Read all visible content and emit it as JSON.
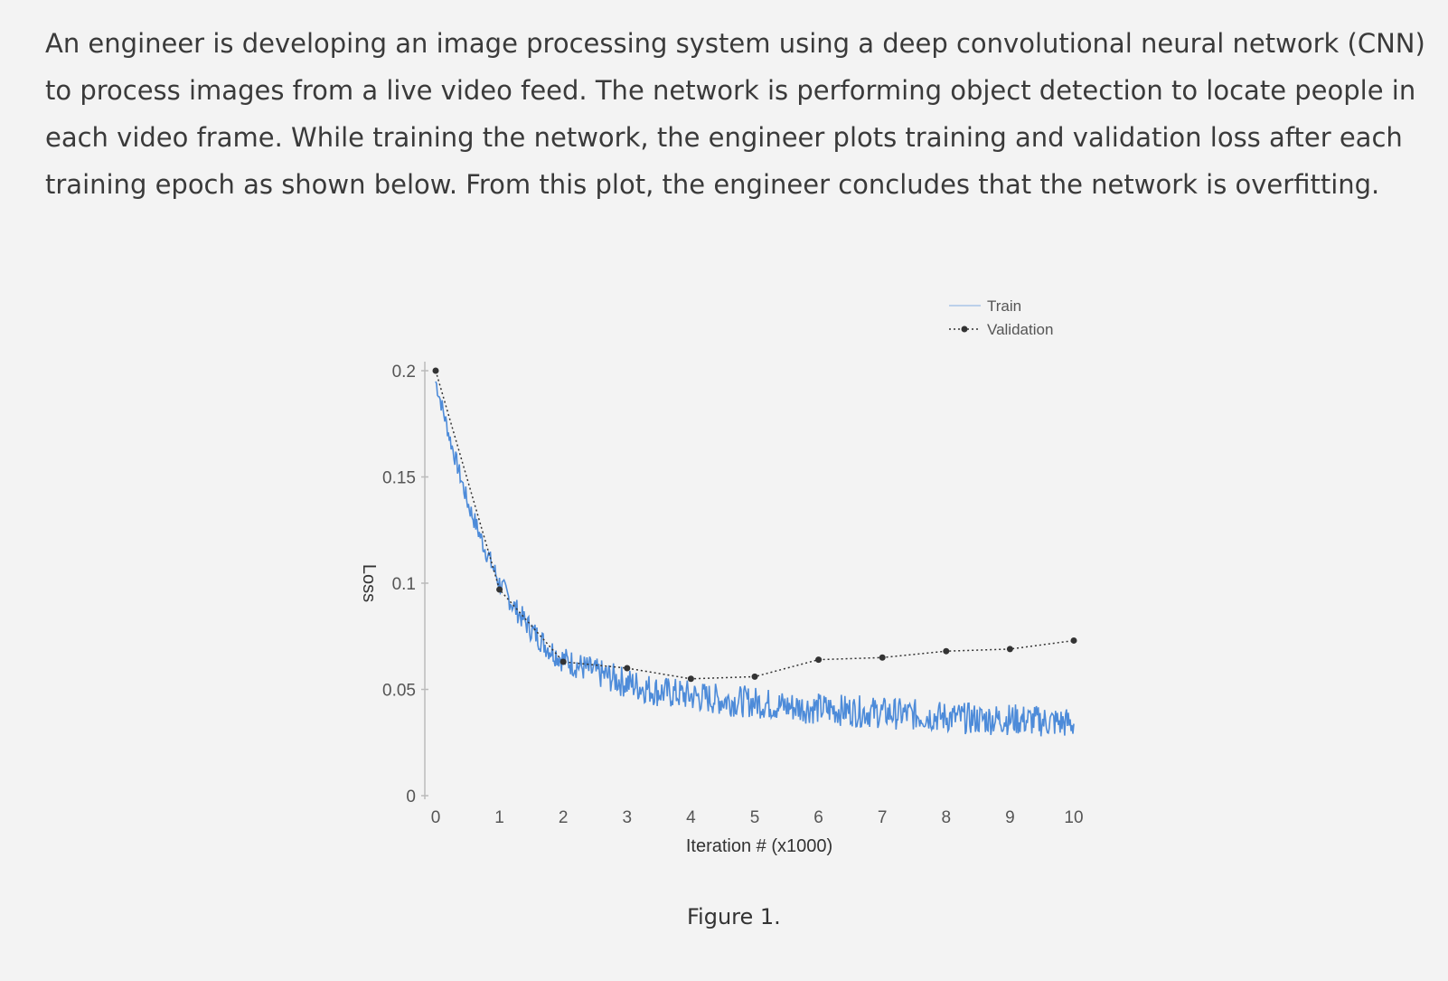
{
  "question": {
    "text": "An engineer is developing an image processing system using a deep convolutional neural network (CNN) to process images from a live video feed. The network is performing object detection to locate people in each video frame. While training the network, the engineer plots training and validation loss after each training epoch as shown below. From this plot, the engineer concludes that the network is overfitting."
  },
  "figure": {
    "caption": "Figure 1."
  },
  "colors": {
    "train": "#3b7fd6",
    "validation": "#333333",
    "axis": "#bbbbbb"
  },
  "chart_data": {
    "type": "line",
    "title": "",
    "xlabel": "Iteration # (x1000)",
    "ylabel": "Loss",
    "xlim": [
      0,
      10
    ],
    "ylim": [
      0,
      0.2
    ],
    "xticks": [
      "0",
      "1",
      "2",
      "3",
      "4",
      "5",
      "6",
      "7",
      "8",
      "9",
      "10"
    ],
    "yticks": [
      "0",
      "0.05",
      "0.1",
      "0.15",
      "0.2"
    ],
    "legend_position": "top-right",
    "grid": false,
    "series": [
      {
        "name": "Train",
        "style": "noisy-line",
        "x": [
          0,
          0.25,
          0.5,
          0.75,
          1,
          1.25,
          1.5,
          1.75,
          2,
          2.5,
          3,
          3.5,
          4,
          4.5,
          5,
          5.5,
          6,
          6.5,
          7,
          7.5,
          8,
          8.5,
          9,
          9.5,
          10
        ],
        "values": [
          0.195,
          0.165,
          0.138,
          0.118,
          0.1,
          0.088,
          0.078,
          0.07,
          0.064,
          0.058,
          0.053,
          0.049,
          0.047,
          0.045,
          0.044,
          0.042,
          0.041,
          0.04,
          0.039,
          0.038,
          0.037,
          0.036,
          0.036,
          0.035,
          0.034
        ]
      },
      {
        "name": "Validation",
        "style": "dotted-markers",
        "x": [
          0,
          1,
          2,
          3,
          4,
          5,
          6,
          7,
          8,
          9,
          10
        ],
        "values": [
          0.2,
          0.097,
          0.063,
          0.06,
          0.055,
          0.056,
          0.064,
          0.065,
          0.068,
          0.069,
          0.073
        ]
      }
    ]
  }
}
